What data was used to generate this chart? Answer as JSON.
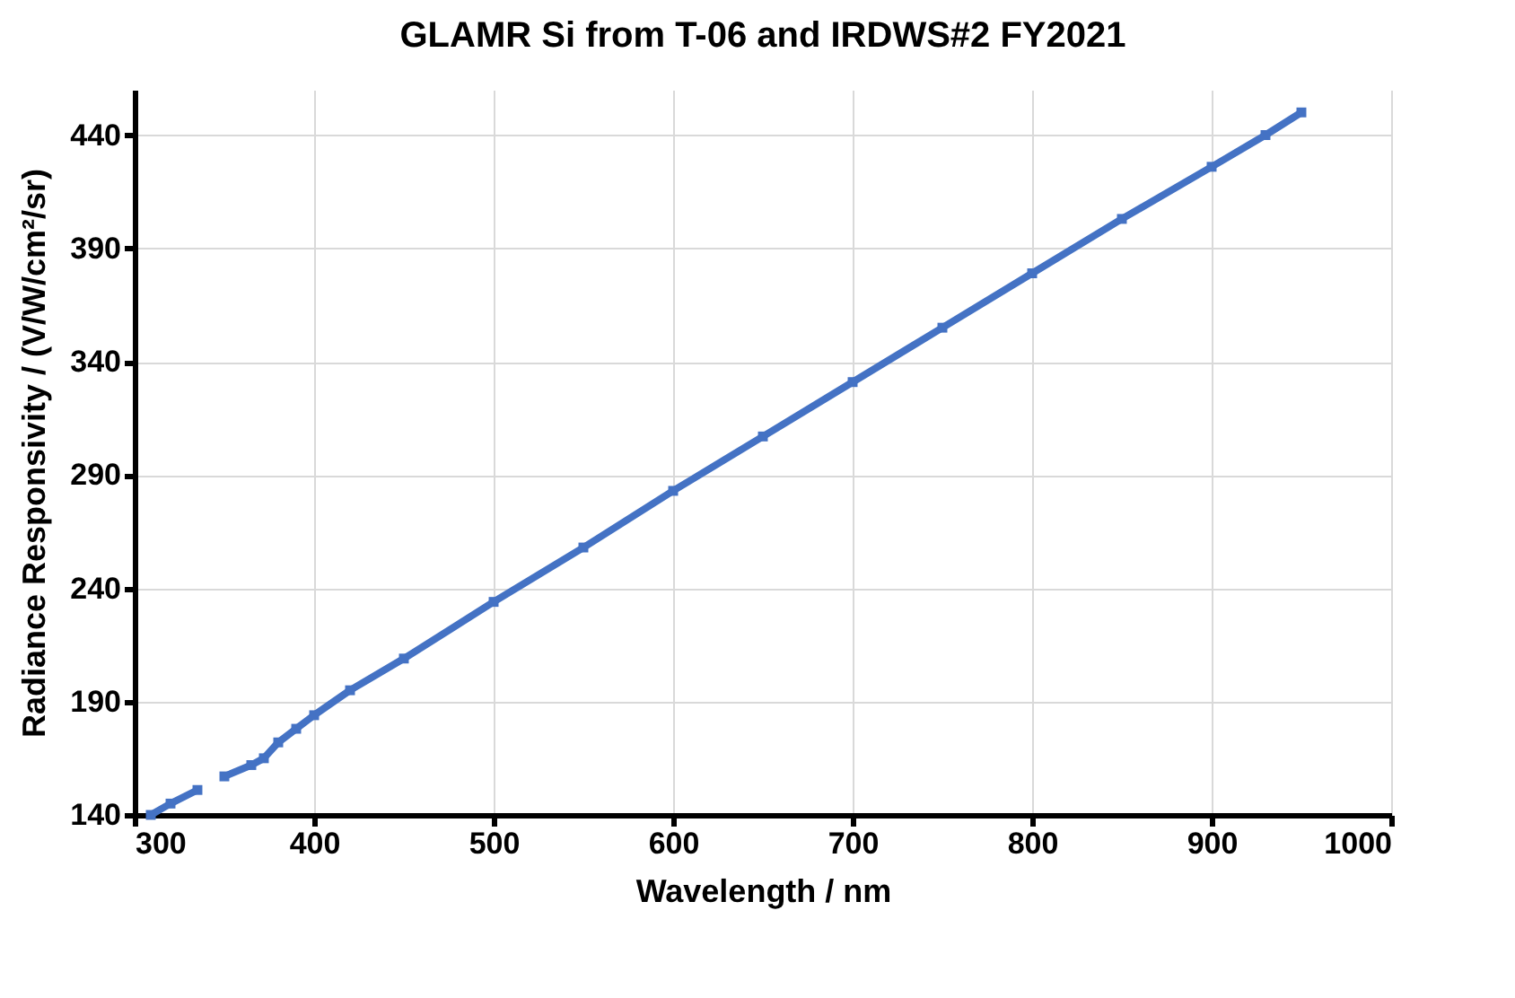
{
  "chart_data": {
    "type": "line",
    "title": "GLAMR Si from T-06 and IRDWS#2 FY2021",
    "xlabel": "Wavelength / nm",
    "ylabel": "Radiance Responsivity / (V/W/cm²/sr)",
    "x": [
      309,
      320,
      335,
      340,
      350,
      365,
      372,
      380,
      390,
      400,
      420,
      450,
      500,
      550,
      600,
      650,
      700,
      750,
      800,
      850,
      900,
      930,
      950
    ],
    "series": [
      {
        "color": "#4472c4",
        "values": [
          140,
          145,
          151,
          null,
          157,
          162,
          165,
          172,
          178,
          184,
          195,
          209,
          234,
          258,
          283,
          307,
          331,
          355,
          379,
          403,
          426,
          440,
          450
        ]
      }
    ],
    "xlim": [
      300,
      1000
    ],
    "xticks": [
      300,
      400,
      500,
      600,
      700,
      800,
      900,
      1000
    ],
    "ylim": [
      140,
      460
    ],
    "yticks": [
      140,
      190,
      240,
      290,
      340,
      390,
      440
    ],
    "grid": true,
    "marker": "square",
    "line_style": "solid"
  }
}
